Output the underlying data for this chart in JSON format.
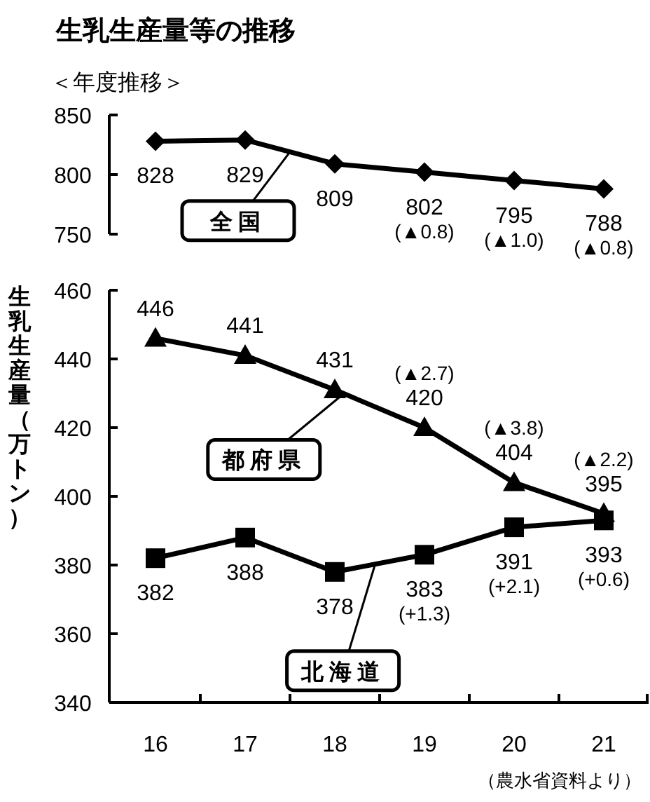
{
  "chart_data": [
    {
      "type": "line",
      "title": "生乳生産量等の推移",
      "subtitle": "＜年度推移＞",
      "categories": [
        "16",
        "17",
        "18",
        "19",
        "20",
        "21"
      ],
      "series": [
        {
          "name": "全国",
          "color": "#000000",
          "marker": "diamond",
          "values": [
            828,
            829,
            809,
            802,
            795,
            788
          ]
        }
      ],
      "ylim": [
        750,
        850
      ],
      "yticks": [
        750,
        800,
        850
      ],
      "tick_labels": "y",
      "data_labels": true,
      "annotations": [
        {
          "text": "(▲0.8)",
          "x": "19",
          "y": 802
        },
        {
          "text": "(▲1.0)",
          "x": "20",
          "y": 795
        },
        {
          "text": "(▲0.8)",
          "x": "21",
          "y": 788
        }
      ]
    },
    {
      "type": "line",
      "ylabel": "生乳生産量（万トン）",
      "categories": [
        "16",
        "17",
        "18",
        "19",
        "20",
        "21"
      ],
      "series": [
        {
          "name": "都府県",
          "color": "#000000",
          "marker": "triangle",
          "values": [
            446,
            441,
            431,
            420,
            404,
            395
          ]
        },
        {
          "name": "北海道",
          "color": "#000000",
          "marker": "square",
          "values": [
            382,
            388,
            378,
            383,
            391,
            393
          ]
        }
      ],
      "ylim": [
        340,
        460
      ],
      "yticks": [
        340,
        360,
        380,
        400,
        420,
        440,
        460
      ],
      "data_labels": true,
      "annotations": [
        {
          "text": "(▲2.7)",
          "x": "19",
          "y": 420
        },
        {
          "text": "(▲3.8)",
          "x": "20",
          "y": 404
        },
        {
          "text": "(▲2.2)",
          "x": "21",
          "y": 395
        },
        {
          "text": "(+1.3)",
          "x": "19",
          "y": 383
        },
        {
          "text": "(+2.1)",
          "x": "20",
          "y": 391
        },
        {
          "text": "(+0.6)",
          "x": "21",
          "y": 393
        },
        "（農水省資料より）"
      ]
    }
  ]
}
